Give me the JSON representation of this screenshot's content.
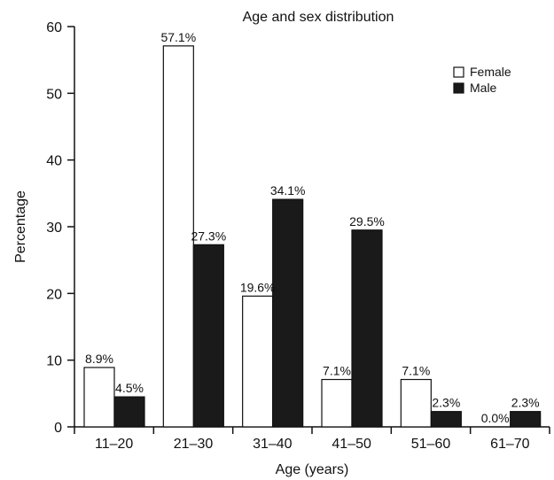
{
  "chart_data": {
    "type": "bar",
    "title": "Age and sex distribution",
    "xlabel": "Age (years)",
    "ylabel": "Percentage",
    "categories": [
      "11–20",
      "21–30",
      "31–40",
      "41–50",
      "51–60",
      "61–70"
    ],
    "ylim": [
      0,
      60
    ],
    "yticks": [
      0,
      10,
      20,
      30,
      40,
      50,
      60
    ],
    "grid": false,
    "legend_position": "top-right",
    "series": [
      {
        "name": "Female",
        "color": "#ffffff",
        "values": [
          8.9,
          57.1,
          19.6,
          7.1,
          7.1,
          0.0
        ],
        "labels": [
          "8.9%",
          "57.1%",
          "19.6%",
          "7.1%",
          "7.1%",
          "0.0%"
        ]
      },
      {
        "name": "Male",
        "color": "#1a1a1a",
        "values": [
          4.5,
          27.3,
          34.1,
          29.5,
          2.3,
          2.3
        ],
        "labels": [
          "4.5%",
          "27.3%",
          "34.1%",
          "29.5%",
          "2.3%",
          "2.3%"
        ]
      }
    ]
  }
}
